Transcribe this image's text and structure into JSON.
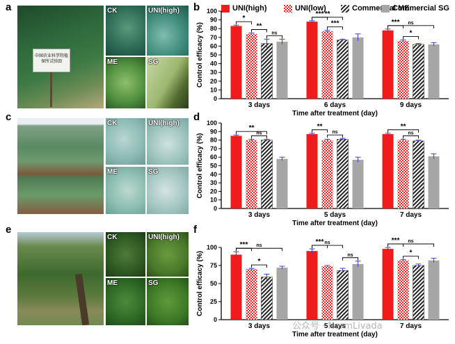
{
  "panels": {
    "a": "a",
    "b": "b",
    "c": "c",
    "d": "d",
    "e": "e",
    "f": "f"
  },
  "photo_labels": {
    "ck": "CK",
    "uni_high": "UNI(high)",
    "me": "ME",
    "sg": "SG"
  },
  "sign_text": "中国农业科学院植保所试验田",
  "legend": [
    {
      "name": "UNI(high)",
      "color": "#ee1c1c",
      "pattern": "solid"
    },
    {
      "name": "UNI(low)",
      "color": "#ee1c1c",
      "pattern": "check"
    },
    {
      "name": "Commercial ME",
      "color": "#222222",
      "pattern": "diagonal"
    },
    {
      "name": "Commercial SG",
      "color": "#a6a6a6",
      "pattern": "solid"
    }
  ],
  "watermark": "公众号 · NormLivada",
  "colors": {
    "uni_high": "#ee1c1c",
    "uni_low": "#ee1c1c",
    "me": "#222222",
    "sg": "#a6a6a6",
    "error_bar": "#3b3bd6"
  },
  "chart_data": [
    {
      "id": "b",
      "type": "bar",
      "categories": [
        "3 days",
        "6 days",
        "9 days"
      ],
      "xlabel": "Time after treatment (day)",
      "ylabel": "Control efficacy (%)",
      "ylim": [
        0,
        100
      ],
      "yticks": [
        0,
        10,
        20,
        30,
        40,
        50,
        60,
        70,
        80,
        90,
        100
      ],
      "series": [
        {
          "name": "UNI(high)",
          "values": [
            83,
            88,
            78
          ],
          "err": [
            1,
            1,
            1.5
          ]
        },
        {
          "name": "UNI(low)",
          "values": [
            74,
            77,
            66
          ],
          "err": [
            1,
            1,
            1
          ]
        },
        {
          "name": "Commercial ME",
          "values": [
            63,
            67,
            62
          ],
          "err": [
            5,
            1,
            1
          ]
        },
        {
          "name": "Commercial SG",
          "values": [
            65,
            70,
            62
          ],
          "err": [
            3,
            4,
            2
          ]
        }
      ],
      "annotations": [
        {
          "cat": 0,
          "from": 0,
          "to": 1,
          "text": "*"
        },
        {
          "cat": 0,
          "from": 1,
          "to": 2,
          "text": "**"
        },
        {
          "cat": 0,
          "from": 2,
          "to": 3,
          "text": "ns"
        },
        {
          "cat": 1,
          "from": 0,
          "to": 1,
          "text": "***"
        },
        {
          "cat": 1,
          "from": 0,
          "to": 2,
          "text": "**"
        },
        {
          "cat": 1,
          "from": 1,
          "to": 2,
          "text": "***"
        },
        {
          "cat": 2,
          "from": 0,
          "to": 1,
          "text": "***"
        },
        {
          "cat": 2,
          "from": 0,
          "to": 3,
          "text": "ns"
        },
        {
          "cat": 2,
          "from": 1,
          "to": 2,
          "text": "*"
        }
      ]
    },
    {
      "id": "d",
      "type": "bar",
      "categories": [
        "3 days",
        "5 days",
        "7 days"
      ],
      "xlabel": "Time after treatment (day)",
      "ylabel": "Control efficacy (%)",
      "ylim": [
        0,
        100
      ],
      "yticks": [
        0,
        10,
        20,
        30,
        40,
        50,
        60,
        70,
        80,
        90,
        100
      ],
      "series": [
        {
          "name": "UNI(high)",
          "values": [
            85,
            87,
            87
          ],
          "err": [
            1,
            1,
            1
          ]
        },
        {
          "name": "UNI(low)",
          "values": [
            80,
            80,
            80
          ],
          "err": [
            1,
            1,
            1
          ]
        },
        {
          "name": "Commercial ME",
          "values": [
            80,
            81,
            79
          ],
          "err": [
            1,
            1,
            1
          ]
        },
        {
          "name": "Commercial SG",
          "values": [
            58,
            57,
            61
          ],
          "err": [
            2,
            3,
            3
          ]
        }
      ],
      "annotations": [
        {
          "cat": 0,
          "from": 0,
          "to": 2,
          "text": "**"
        },
        {
          "cat": 0,
          "from": 1,
          "to": 2,
          "text": "ns"
        },
        {
          "cat": 1,
          "from": 0,
          "to": 1,
          "text": "**"
        },
        {
          "cat": 1,
          "from": 1,
          "to": 2,
          "text": "ns"
        },
        {
          "cat": 2,
          "from": 0,
          "to": 2,
          "text": "**"
        },
        {
          "cat": 2,
          "from": 1,
          "to": 2,
          "text": "ns"
        }
      ]
    },
    {
      "id": "f",
      "type": "bar",
      "categories": [
        "3 days",
        "5 days",
        "7 days"
      ],
      "xlabel": "Time after treatment (day)",
      "ylabel": "Control efficacy (%)",
      "ylim": [
        0,
        100
      ],
      "yticks": [
        0,
        25,
        50,
        75,
        100
      ],
      "series": [
        {
          "name": "UNI(high)",
          "values": [
            90,
            95,
            98
          ],
          "err": [
            4,
            3,
            2
          ]
        },
        {
          "name": "UNI(low)",
          "values": [
            70,
            74,
            82
          ],
          "err": [
            1,
            1,
            1
          ]
        },
        {
          "name": "Commercial ME",
          "values": [
            59,
            68,
            75
          ],
          "err": [
            4,
            3,
            2
          ]
        },
        {
          "name": "Commercial SG",
          "values": [
            72,
            77,
            82
          ],
          "err": [
            2,
            4,
            3
          ]
        }
      ],
      "annotations": [
        {
          "cat": 0,
          "from": 0,
          "to": 1,
          "text": "***"
        },
        {
          "cat": 0,
          "from": 0,
          "to": 3,
          "text": "ns"
        },
        {
          "cat": 0,
          "from": 1,
          "to": 2,
          "text": "*"
        },
        {
          "cat": 1,
          "from": 0,
          "to": 1,
          "text": "***"
        },
        {
          "cat": 1,
          "from": 0,
          "to": 2,
          "text": "ns"
        },
        {
          "cat": 1,
          "from": 2,
          "to": 3,
          "text": "ns"
        },
        {
          "cat": 2,
          "from": 0,
          "to": 1,
          "text": "***"
        },
        {
          "cat": 2,
          "from": 0,
          "to": 3,
          "text": "ns"
        },
        {
          "cat": 2,
          "from": 1,
          "to": 2,
          "text": "*"
        }
      ]
    }
  ]
}
